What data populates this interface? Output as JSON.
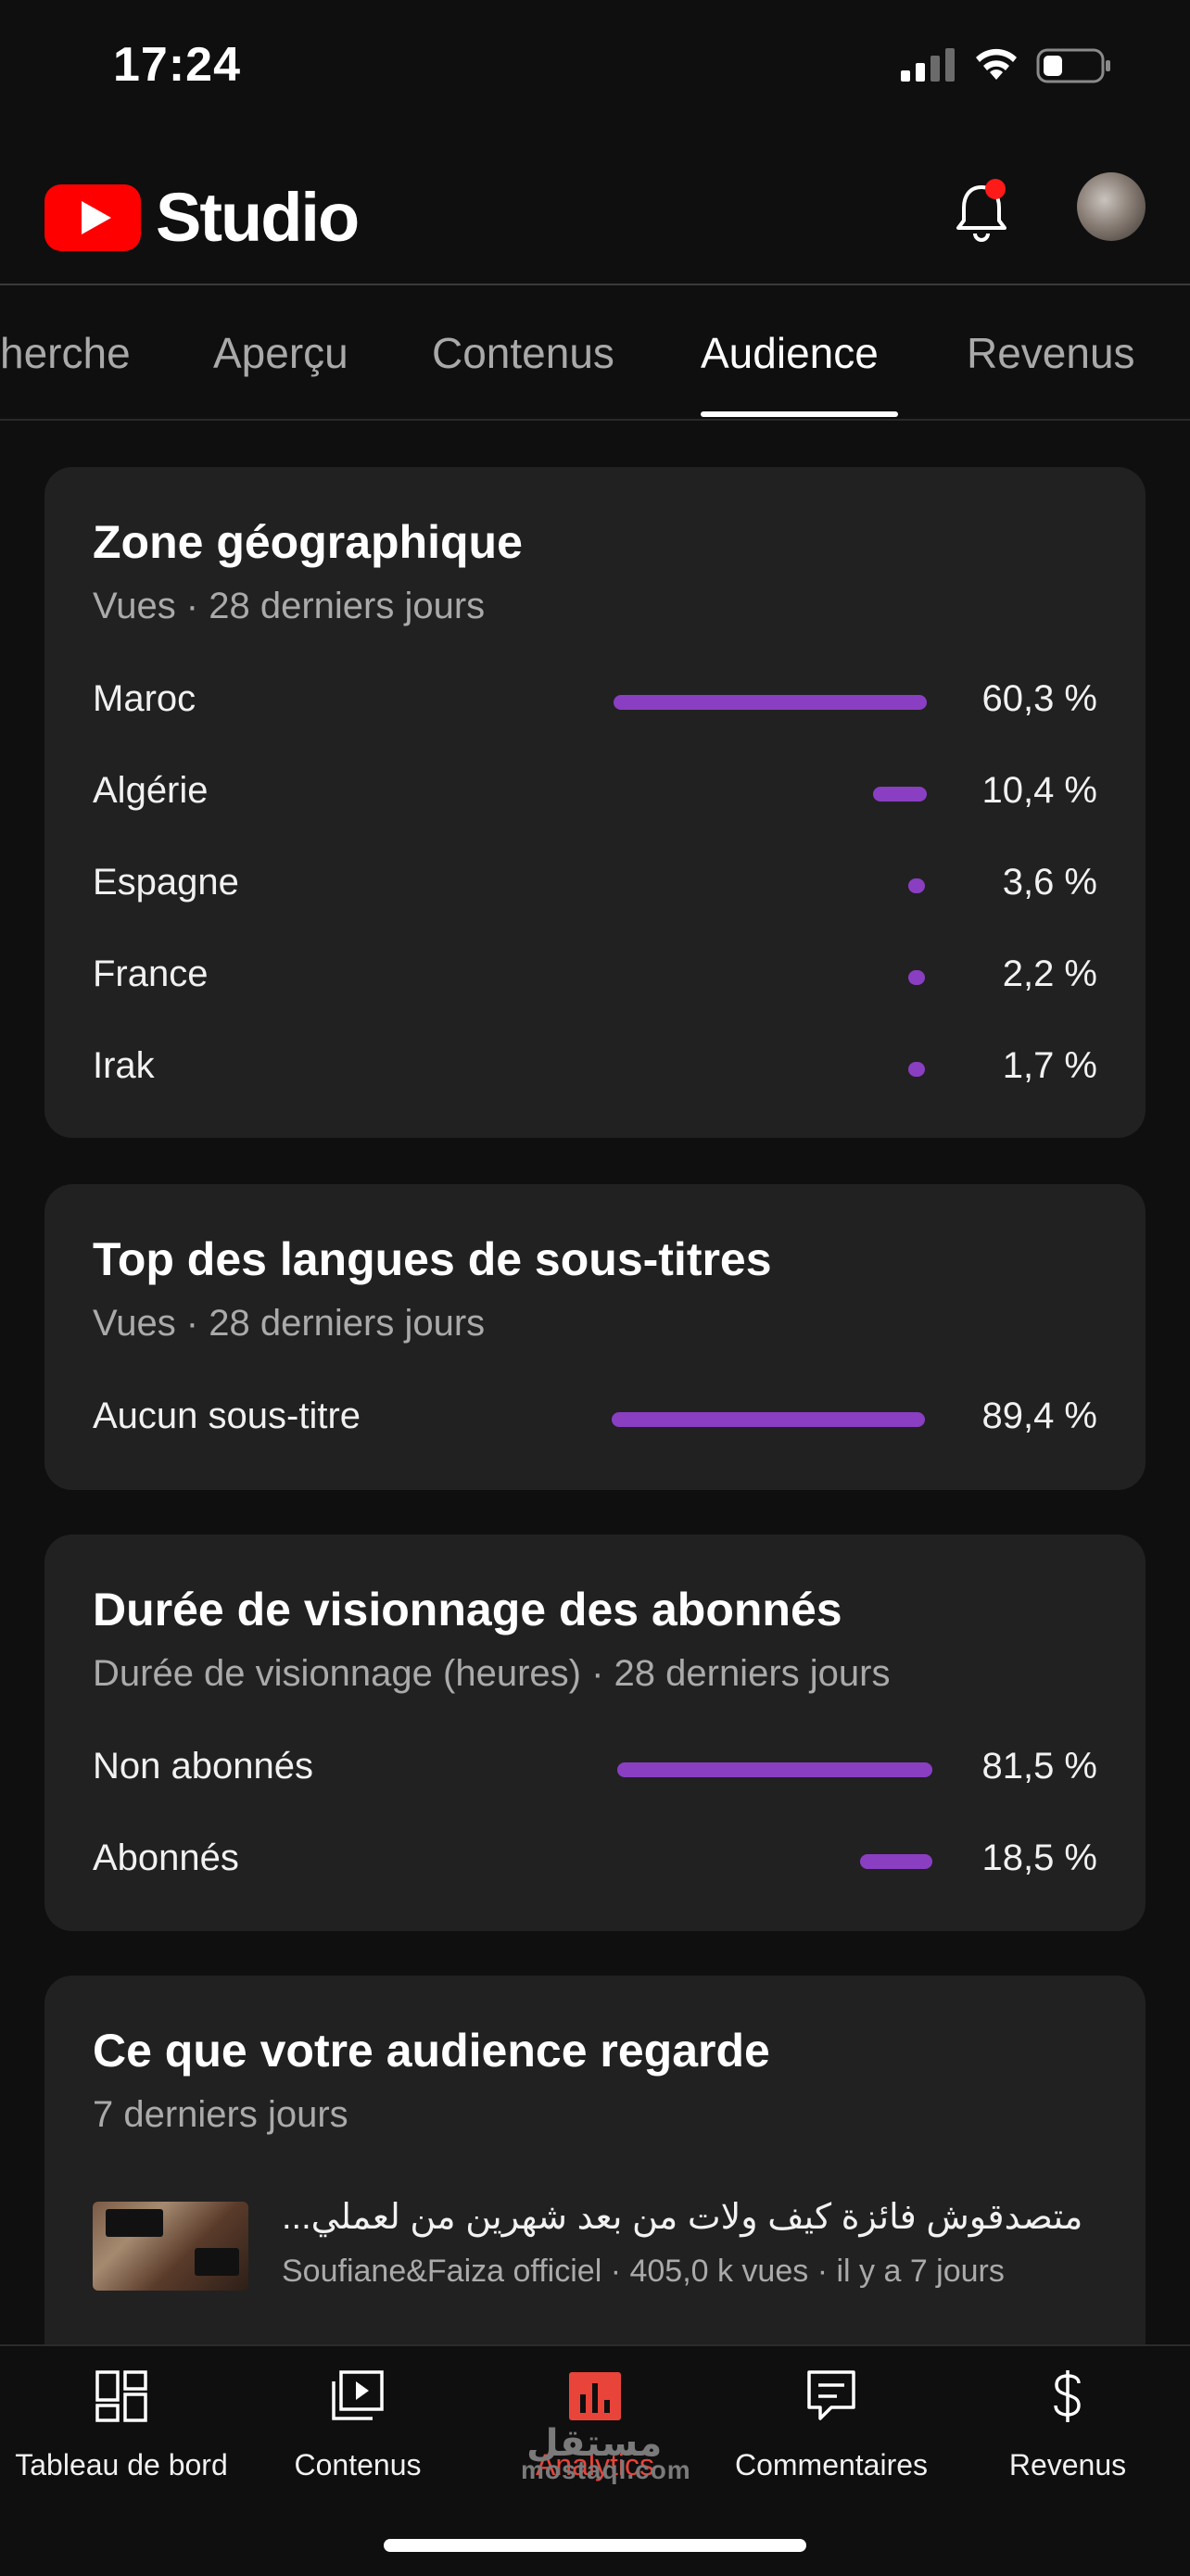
{
  "status_bar": {
    "time": "17:24",
    "battery_level": 0.3
  },
  "header": {
    "app_name": "Studio",
    "notification_dot": true
  },
  "tabs": [
    {
      "label": "herche",
      "active": false
    },
    {
      "label": "Aperçu",
      "active": false
    },
    {
      "label": "Contenus",
      "active": false
    },
    {
      "label": "Audience",
      "active": true
    },
    {
      "label": "Revenus",
      "active": false
    }
  ],
  "geo_card": {
    "title": "Zone géographique",
    "subtitle": "Vues · 28 derniers jours",
    "rows": [
      {
        "label": "Maroc",
        "value": "60,3 %",
        "share": 60.3
      },
      {
        "label": "Algérie",
        "value": "10,4 %",
        "share": 10.4
      },
      {
        "label": "Espagne",
        "value": "3,6 %",
        "share": 3.6
      },
      {
        "label": "France",
        "value": "2,2 %",
        "share": 2.2
      },
      {
        "label": "Irak",
        "value": "1,7 %",
        "share": 1.7
      }
    ]
  },
  "subs_lang_card": {
    "title": "Top des langues de sous-titres",
    "subtitle": "Vues · 28 derniers jours",
    "rows": [
      {
        "label": "Aucun sous-titre",
        "value": "89,4 %",
        "share": 89.4
      }
    ]
  },
  "watch_time_card": {
    "title": "Durée de visionnage des abonnés",
    "subtitle": "Durée de visionnage (heures) · 28 derniers jours",
    "rows": [
      {
        "label": "Non abonnés",
        "value": "81,5 %",
        "share": 81.5
      },
      {
        "label": "Abonnés",
        "value": "18,5 %",
        "share": 18.5
      }
    ]
  },
  "audience_watch_card": {
    "title": "Ce que votre audience regarde",
    "subtitle": "7 derniers jours",
    "video": {
      "title": "متصدقوش فائزة كيف ولات من بعد شهرين من لعملي...",
      "meta": "Soufiane&Faiza officiel · 405,0 k vues · il y a 7 jours"
    }
  },
  "bottom_nav": [
    {
      "label": "Tableau de bord",
      "icon": "dashboard-icon",
      "active": false
    },
    {
      "label": "Contenus",
      "icon": "content-icon",
      "active": false
    },
    {
      "label": "Analytics",
      "icon": "analytics-icon",
      "active": true
    },
    {
      "label": "Commentaires",
      "icon": "comments-icon",
      "active": false
    },
    {
      "label": "Revenus",
      "icon": "dollar-icon",
      "active": false
    }
  ],
  "watermark": {
    "text": "mostaql.com",
    "arabic": "مستقل"
  },
  "colors": {
    "bar": "#8a3ec2",
    "accent_red": "#e8443a",
    "card_bg": "#212121",
    "page_bg": "#0f0f0f"
  }
}
